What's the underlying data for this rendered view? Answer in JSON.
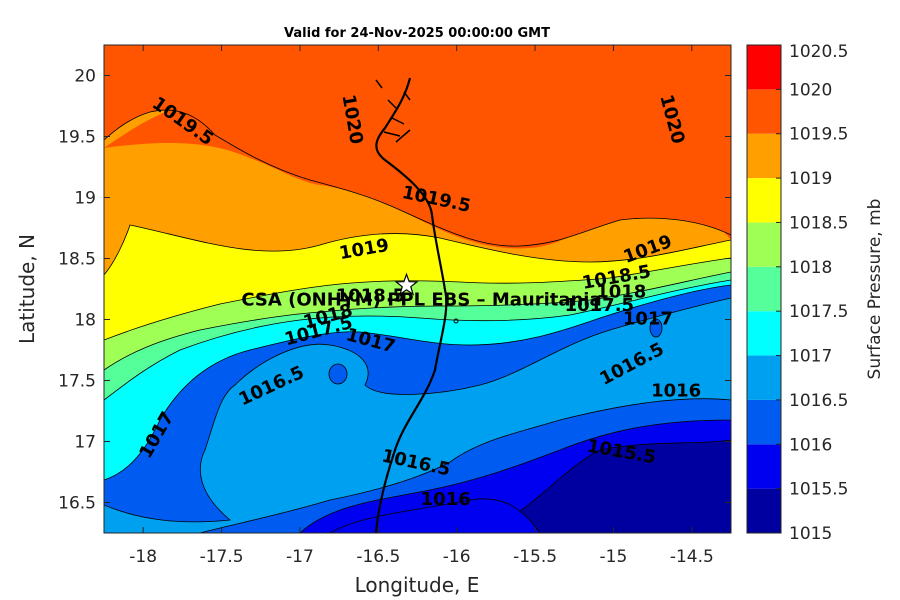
{
  "title": "Valid for 24-Nov-2025 00:00:00 GMT",
  "chart_data": {
    "type": "heatmap",
    "subtype": "filled-contour-map",
    "xlabel": "Longitude, E",
    "ylabel": "Latitude, N",
    "xlim": [
      -18.25,
      -14.25
    ],
    "ylim": [
      16.25,
      20.25
    ],
    "xticks": [
      -18,
      -17.5,
      -17,
      -16.5,
      -16,
      -15.5,
      -15,
      -14.5
    ],
    "yticks": [
      16.5,
      17,
      17.5,
      18,
      18.5,
      19,
      19.5,
      20
    ],
    "colorbar": {
      "label": "Surface Pressure, mb",
      "levels": [
        1015,
        1015.5,
        1016,
        1016.5,
        1017,
        1017.5,
        1018,
        1018.5,
        1019,
        1019.5,
        1020,
        1020.5
      ],
      "colors": [
        "#0000a0",
        "#0000f0",
        "#005cf0",
        "#00a0f0",
        "#00ffff",
        "#55ff9a",
        "#a0ff55",
        "#ffff00",
        "#ffa000",
        "#ff5500",
        "#ff0000",
        "#a00000"
      ]
    },
    "contour_labels": [
      {
        "text": "1019.5",
        "lon": -17.75,
        "lat": 19.62
      },
      {
        "text": "1020",
        "lon": -16.67,
        "lat": 19.64
      },
      {
        "text": "1020",
        "lon": -14.63,
        "lat": 19.64
      },
      {
        "text": "1019.5",
        "lon": -16.13,
        "lat": 18.98
      },
      {
        "text": "1019",
        "lon": -16.59,
        "lat": 18.57
      },
      {
        "text": "1019",
        "lon": -14.78,
        "lat": 18.57
      },
      {
        "text": "1018.5",
        "lon": -16.55,
        "lat": 18.19
      },
      {
        "text": "1018.5",
        "lon": -14.98,
        "lat": 18.34
      },
      {
        "text": "1018",
        "lon": -16.82,
        "lat": 18.02
      },
      {
        "text": "1018",
        "lon": -14.95,
        "lat": 18.22
      },
      {
        "text": "1017.5",
        "lon": -16.88,
        "lat": 17.9
      },
      {
        "text": "1017.5",
        "lon": -15.09,
        "lat": 18.11
      },
      {
        "text": "1017",
        "lon": -16.55,
        "lat": 17.82
      },
      {
        "text": "1017",
        "lon": -14.78,
        "lat": 18.0
      },
      {
        "text": "1016.5",
        "lon": -17.18,
        "lat": 17.45
      },
      {
        "text": "1016.5",
        "lon": -14.88,
        "lat": 17.63
      },
      {
        "text": "1016",
        "lon": -14.6,
        "lat": 17.41
      },
      {
        "text": "1017",
        "lon": -17.91,
        "lat": 17.05
      },
      {
        "text": "1016.5",
        "lon": -16.26,
        "lat": 16.82
      },
      {
        "text": "1015.5",
        "lon": -14.95,
        "lat": 16.91
      },
      {
        "text": "1016",
        "lon": -16.07,
        "lat": 16.52
      }
    ],
    "site": {
      "label": "CSA (ONHYM) PPL EBS  – Mauritania",
      "lon": -16.32,
      "lat": 18.28,
      "marker": "white-star"
    },
    "coastline_color": "#000000"
  }
}
